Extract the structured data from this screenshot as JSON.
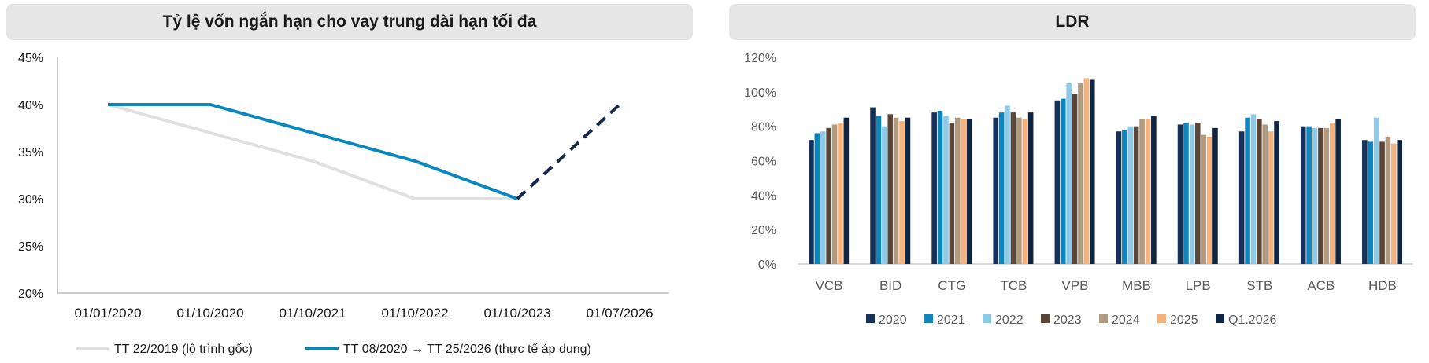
{
  "chart_data": [
    {
      "type": "line",
      "title": "Tỷ lệ vốn ngắn hạn cho vay trung dài hạn tối đa",
      "x": [
        "01/01/2020",
        "01/10/2020",
        "01/10/2021",
        "01/10/2022",
        "01/10/2023",
        "01/07/2026"
      ],
      "ylim": [
        0.2,
        0.45
      ],
      "yticks": [
        "20%",
        "25%",
        "30%",
        "35%",
        "40%",
        "45%"
      ],
      "ytick_values": [
        0.2,
        0.25,
        0.3,
        0.35,
        0.4,
        0.45
      ],
      "series": [
        {
          "name": "TT 22/2019 (lộ trình gốc)",
          "color": "#e0e0e0",
          "values": [
            0.4,
            0.37,
            0.34,
            0.3,
            0.3,
            null
          ]
        },
        {
          "name": "TT 08/2020 → TT 25/2026 (thực tế áp dụng)",
          "color": "#0a87be",
          "values": [
            0.4,
            0.4,
            0.37,
            0.34,
            0.3,
            null
          ]
        },
        {
          "name": "",
          "color": "#16294a",
          "dashed": true,
          "values": [
            null,
            null,
            null,
            null,
            0.3,
            0.4
          ]
        }
      ],
      "legend_position": "bottom",
      "grid": false
    },
    {
      "type": "bar",
      "title": "LDR",
      "categories": [
        "VCB",
        "BID",
        "CTG",
        "TCB",
        "VPB",
        "MBB",
        "LPB",
        "STB",
        "ACB",
        "HDB"
      ],
      "ylim": [
        0,
        1.2
      ],
      "yticks": [
        "0%",
        "20%",
        "40%",
        "60%",
        "80%",
        "100%",
        "120%"
      ],
      "ytick_values": [
        0,
        0.2,
        0.4,
        0.6,
        0.8,
        1.0,
        1.2
      ],
      "series": [
        {
          "name": "2020",
          "color": "#17305a",
          "values": [
            0.72,
            0.91,
            0.88,
            0.85,
            0.95,
            0.77,
            0.81,
            0.77,
            0.8,
            0.72
          ]
        },
        {
          "name": "2021",
          "color": "#0e86bd",
          "values": [
            0.76,
            0.86,
            0.89,
            0.88,
            0.96,
            0.78,
            0.82,
            0.85,
            0.8,
            0.71
          ]
        },
        {
          "name": "2022",
          "color": "#8ecae8",
          "values": [
            0.77,
            0.8,
            0.86,
            0.92,
            1.05,
            0.8,
            0.81,
            0.87,
            0.79,
            0.85
          ]
        },
        {
          "name": "2023",
          "color": "#5b4537",
          "values": [
            0.79,
            0.87,
            0.82,
            0.88,
            0.99,
            0.8,
            0.82,
            0.84,
            0.79,
            0.71
          ]
        },
        {
          "name": "2024",
          "color": "#b09a80",
          "values": [
            0.81,
            0.85,
            0.85,
            0.85,
            1.05,
            0.84,
            0.75,
            0.81,
            0.79,
            0.74
          ]
        },
        {
          "name": "2025",
          "color": "#f6b27d",
          "values": [
            0.82,
            0.83,
            0.84,
            0.84,
            1.08,
            0.84,
            0.74,
            0.77,
            0.82,
            0.7
          ]
        },
        {
          "name": "Q1.2026",
          "color": "#0f2541",
          "values": [
            0.85,
            0.85,
            0.84,
            0.88,
            1.07,
            0.86,
            0.79,
            0.83,
            0.84,
            0.72
          ]
        }
      ],
      "legend_position": "bottom",
      "grid": false
    }
  ]
}
